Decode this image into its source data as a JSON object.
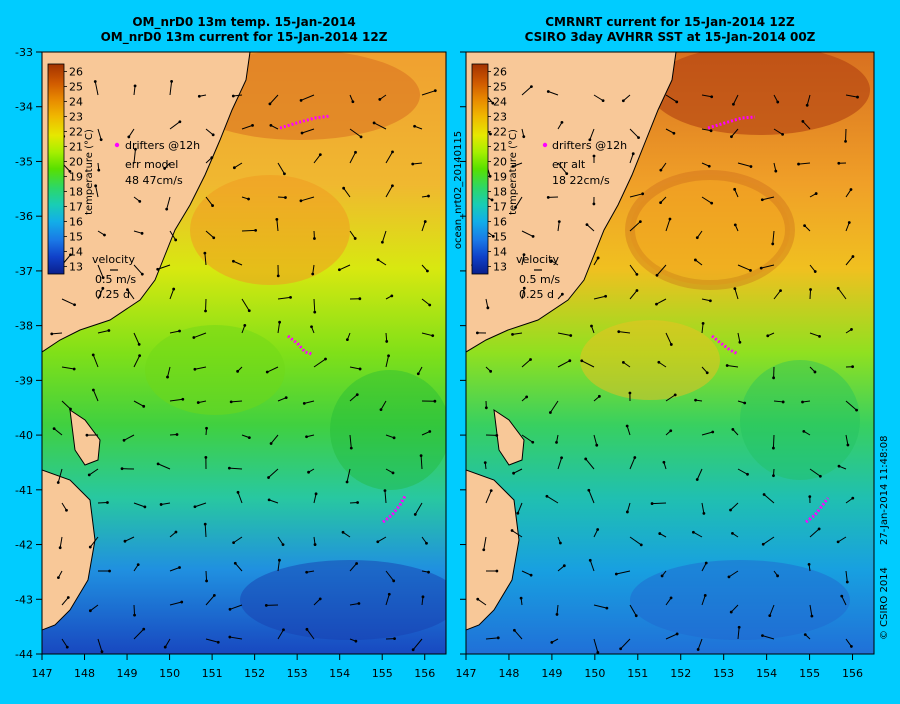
{
  "colors": {
    "background": "#00ccff",
    "land": "#f8c898",
    "coastline": "#000000",
    "drifter": "#ff00ff",
    "arrow": "#000000",
    "colorbar_stops": [
      "#0a1f8c",
      "#1040c8",
      "#1a78e6",
      "#12aee8",
      "#19cdb5",
      "#2cd768",
      "#58e000",
      "#a6ef00",
      "#e6e800",
      "#f0b800",
      "#e88a00",
      "#d05a00",
      "#a33200"
    ]
  },
  "panels": [
    {
      "id": "left",
      "title_line1": "OM_nrD0 13m temp. 15-Jan-2014",
      "title_line2": "OM_nrD0 13m current for 15-Jan-2014 12Z",
      "drifters_label": "drifters @12h",
      "err_label": "err model",
      "err_value": "48 47cm/s",
      "velocity_label": "velocity",
      "velocity_scale": "0.5 m/s",
      "velocity_time": "0.25 d",
      "colorbar_title": "temperature (°C)",
      "side_label": ""
    },
    {
      "id": "right",
      "title_line1": "CMRNRT current for 15-Jan-2014 12Z",
      "title_line2": "CSIRO 3day AVHRR SST at 15-Jan-2014 00Z",
      "drifters_label": "drifters @12h",
      "err_label": "err alt",
      "err_value": "18 22cm/s",
      "velocity_label": "velocity",
      "velocity_scale": "0.5 m/s",
      "velocity_time": "0.25 d",
      "colorbar_title": "temperature (°C)",
      "side_label": "ocean_nrt02_20140115"
    }
  ],
  "axes": {
    "lat_ticks": [
      -33,
      -34,
      -35,
      -36,
      -37,
      -38,
      -39,
      -40,
      -41,
      -42,
      -43,
      -44
    ],
    "lon_ticks": [
      147,
      148,
      149,
      150,
      151,
      152,
      153,
      154,
      155,
      156
    ],
    "lon_range": [
      147,
      156.5
    ],
    "lat_range": [
      -44,
      -33
    ]
  },
  "colorbar": {
    "ticks": [
      26,
      25,
      24,
      23,
      22,
      21,
      20,
      19,
      18,
      17,
      16,
      15,
      14,
      13
    ],
    "range": [
      12.5,
      26.5
    ]
  },
  "credit": {
    "copyright": "© CSIRO 2014",
    "timestamp": "27-Jan-2014 11:48:08"
  }
}
